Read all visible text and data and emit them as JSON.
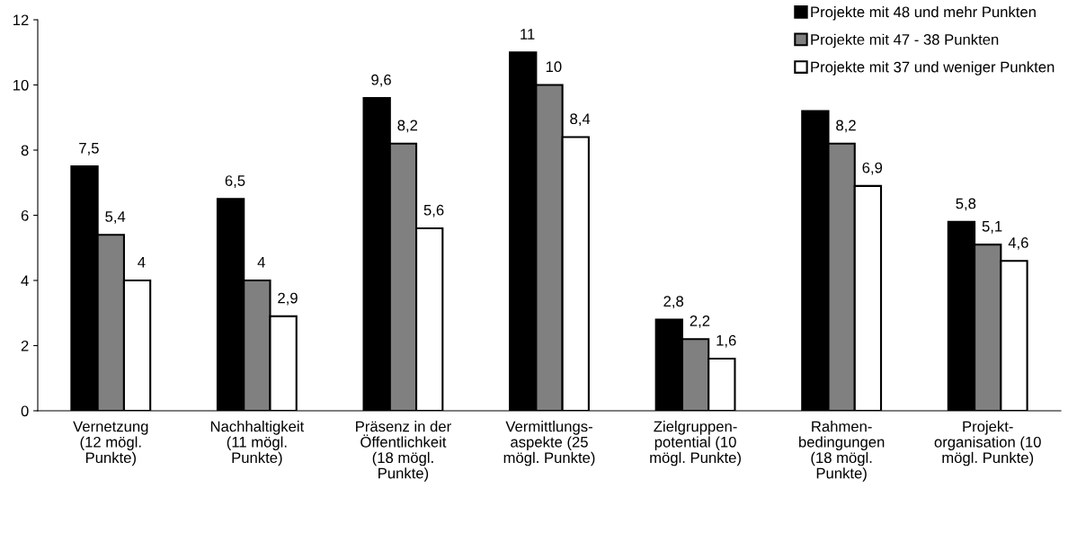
{
  "chart_data": {
    "type": "bar",
    "categories": [
      "Vernetzung\n(12 mögl.\nPunkte)",
      "Nachhaltigkeit\n(11 mögl.\nPunkte)",
      "Präsenz in der\nÖffentlichkeit\n(18 mögl.\nPunkte)",
      "Vermittlungs-\naspekte (25\nmögl. Punkte)",
      "Zielgruppen-\npotential (10\nmögl. Punkte)",
      "Rahmen-\nbedingungen\n(18 mögl.\nPunkte)",
      "Projekt-\norganisation (10\nmögl. Punkte)"
    ],
    "series": [
      {
        "name": "Projekte mit 48 und mehr Punkten",
        "color": "#000000",
        "values": [
          7.5,
          6.5,
          9.6,
          11,
          2.8,
          9.2,
          5.8
        ],
        "value_labels": [
          "7,5",
          "6,5",
          "9,6",
          "11",
          "2,8",
          null,
          "5,8"
        ]
      },
      {
        "name": "Projekte mit 47 - 38 Punkten",
        "color": "#808080",
        "values": [
          5.4,
          4,
          8.2,
          10,
          2.2,
          8.2,
          5.1
        ],
        "value_labels": [
          "5,4",
          "4",
          "8,2",
          "10",
          "2,2",
          "8,2",
          "5,1"
        ]
      },
      {
        "name": "Projekte mit 37 und weniger Punkten",
        "color": "#ffffff",
        "values": [
          4,
          2.9,
          5.6,
          8.4,
          1.6,
          6.9,
          4.6
        ],
        "value_labels": [
          "4",
          "2,9",
          "5,6",
          "8,4",
          "1,6",
          "6,9",
          "4,6"
        ]
      }
    ],
    "ylim": [
      0,
      12
    ],
    "yticks": [
      0,
      2,
      4,
      6,
      8,
      10,
      12
    ],
    "grid": false,
    "legend": "top right"
  }
}
